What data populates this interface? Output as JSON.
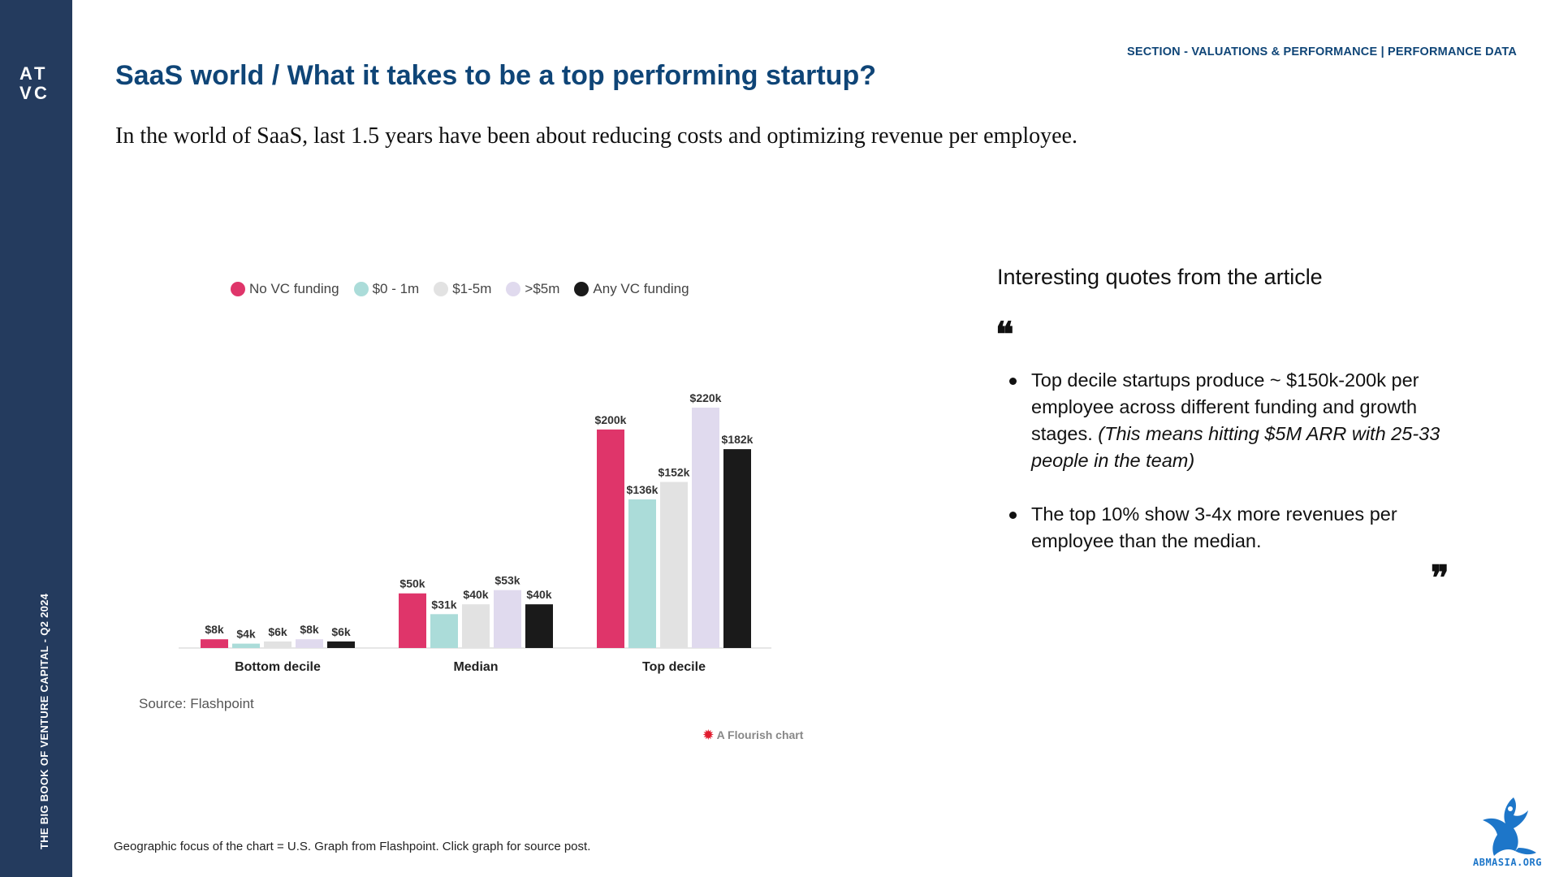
{
  "sidebar": {
    "logo_text": "ATVC",
    "vertical_label": "THE BIG BOOK OF VENTURE CAPITAL - Q2 2024"
  },
  "header": {
    "section_label": "SECTION - VALUATIONS & PERFORMANCE | PERFORMANCE DATA",
    "title": "SaaS world / What it takes to be a top performing startup?",
    "subtitle": "In the world of SaaS, last 1.5 years have been about reducing costs and optimizing revenue per employee."
  },
  "chart": {
    "source": "Source: Flashpoint",
    "flourish_credit": "A Flourish chart"
  },
  "chart_data": {
    "type": "bar",
    "categories": [
      "Bottom decile",
      "Median",
      "Top decile"
    ],
    "series": [
      {
        "name": "No VC funding",
        "color": "#df356a",
        "values": [
          8,
          50,
          200
        ],
        "labels": [
          "$8k",
          "$50k",
          "$200k"
        ]
      },
      {
        "name": "$0 - 1m",
        "color": "#abdcd9",
        "values": [
          4,
          31,
          136
        ],
        "labels": [
          "$4k",
          "$31k",
          "$136k"
        ]
      },
      {
        "name": "$1-5m",
        "color": "#e2e2e2",
        "values": [
          6,
          40,
          152
        ],
        "labels": [
          "$6k",
          "$40k",
          "$152k"
        ]
      },
      {
        "name": ">$5m",
        "color": "#e0daee",
        "values": [
          8,
          53,
          220
        ],
        "labels": [
          "$8k",
          "$53k",
          "$220k"
        ]
      },
      {
        "name": "Any VC funding",
        "color": "#1a1a1a",
        "values": [
          6,
          40,
          182
        ],
        "labels": [
          "$6k",
          "$40k",
          "$182k"
        ]
      }
    ],
    "ylim": [
      0,
      220
    ],
    "grid": false,
    "legend_position": "top-left"
  },
  "quotes": {
    "heading": "Interesting quotes from the article",
    "open_mark": "❝",
    "close_mark": "❞",
    "items": [
      {
        "text": "Top decile startups produce ~ $150k-200k per employee across different funding and growth stages. ",
        "italic": "(This means hitting $5M ARR with 25-33 people in the team)"
      },
      {
        "text": "The top 10% show 3-4x more revenues per employee than the median.",
        "italic": ""
      }
    ]
  },
  "footer": {
    "note": "Geographic focus of the chart = U.S. Graph from Flashpoint. Click graph for source post.",
    "brand": "ABMASIA.ORG"
  },
  "colors": {
    "sidebar": "#243b5e",
    "title": "#0f4577",
    "brand": "#1d76c9"
  }
}
